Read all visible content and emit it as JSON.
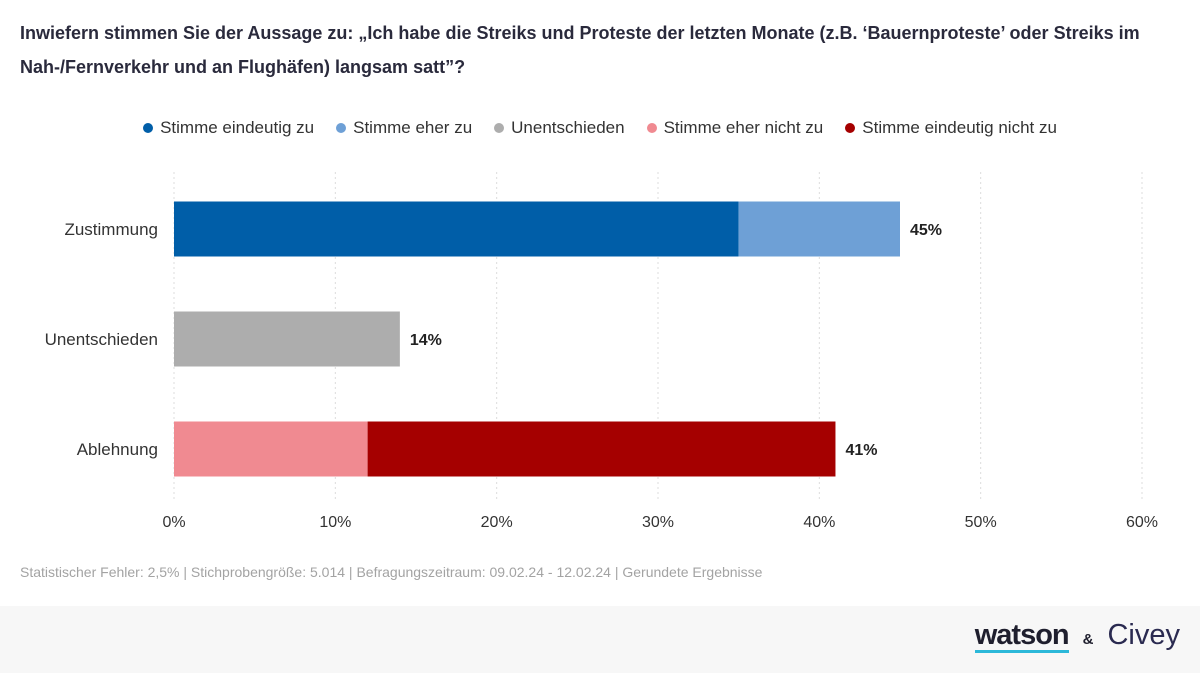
{
  "title": "Inwiefern stimmen Sie der Aussage zu: „Ich habe die Streiks und Proteste der letzten Monate (z.B. ‘Bauernproteste’ oder Streiks im Nah-/Fernverkehr und an Flughäfen) langsam satt”?",
  "footnote": "Statistischer Fehler: 2,5% | Stichprobengröße: 5.014 | Befragungszeitraum: 09.02.24 - 12.02.24 | Gerundete Ergebnisse",
  "brand": {
    "watson": "watson",
    "amp": "&",
    "civey": "Civey"
  },
  "colors": {
    "stimme_eindeutig_zu": "#005ea8",
    "stimme_eher_zu": "#6ea0d6",
    "unentschieden": "#adadad",
    "stimme_eher_nicht_zu": "#f08a91",
    "stimme_eindeutig_nicht_zu": "#a50000"
  },
  "chart_data": {
    "type": "bar",
    "orientation": "horizontal",
    "stacked": true,
    "categories": [
      "Zustimmung",
      "Unentschieden",
      "Ablehnung"
    ],
    "series": [
      {
        "name": "Stimme eindeutig zu",
        "color": "#005ea8",
        "values": [
          35,
          0,
          0
        ]
      },
      {
        "name": "Stimme eher zu",
        "color": "#6ea0d6",
        "values": [
          10,
          0,
          0
        ]
      },
      {
        "name": "Unentschieden",
        "color": "#adadad",
        "values": [
          0,
          14,
          0
        ]
      },
      {
        "name": "Stimme eher nicht zu",
        "color": "#f08a91",
        "values": [
          0,
          0,
          12
        ]
      },
      {
        "name": "Stimme eindeutig nicht zu",
        "color": "#a50000",
        "values": [
          0,
          0,
          29
        ]
      }
    ],
    "totals": [
      "45%",
      "14%",
      "41%"
    ],
    "xlim": [
      0,
      60
    ],
    "xticks": [
      "0%",
      "10%",
      "20%",
      "30%",
      "40%",
      "50%",
      "60%"
    ],
    "grid": true,
    "legend_position": "top-center"
  }
}
